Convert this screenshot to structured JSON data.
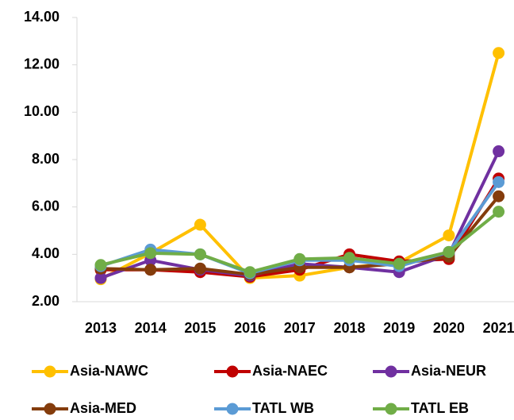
{
  "chart_data": {
    "type": "line",
    "categories": [
      "2013",
      "2014",
      "2015",
      "2016",
      "2017",
      "2018",
      "2019",
      "2020",
      "2021"
    ],
    "series": [
      {
        "name": "Asia-NAWC",
        "color": "#FFC000",
        "values": [
          2.95,
          4.05,
          5.25,
          3.0,
          3.1,
          3.45,
          3.65,
          4.8,
          12.5
        ]
      },
      {
        "name": "Asia-NAEC",
        "color": "#C00000",
        "values": [
          3.35,
          3.35,
          3.25,
          3.05,
          3.35,
          4.0,
          3.7,
          3.8,
          7.2
        ]
      },
      {
        "name": "Asia-NEUR",
        "color": "#7030A0",
        "values": [
          3.0,
          3.75,
          3.35,
          3.1,
          3.6,
          3.45,
          3.25,
          4.0,
          8.35
        ]
      },
      {
        "name": "Asia-MED",
        "color": "#843C0C",
        "values": [
          3.4,
          3.35,
          3.4,
          3.15,
          3.45,
          3.45,
          3.6,
          3.9,
          6.45
        ]
      },
      {
        "name": "TATL WB",
        "color": "#5B9BD5",
        "values": [
          3.5,
          4.2,
          4.0,
          3.2,
          3.75,
          3.75,
          3.5,
          4.1,
          7.05
        ]
      },
      {
        "name": "TATL EB",
        "color": "#70AD47",
        "values": [
          3.55,
          4.05,
          4.0,
          3.25,
          3.8,
          3.85,
          3.6,
          4.1,
          5.8
        ]
      }
    ],
    "ylim": [
      2,
      14
    ],
    "yticks": [
      {
        "value": 2,
        "label": "2.00"
      },
      {
        "value": 4,
        "label": "4.00"
      },
      {
        "value": 6,
        "label": "6.00"
      },
      {
        "value": 8,
        "label": "8.00"
      },
      {
        "value": 10,
        "label": "10.00"
      },
      {
        "value": 12,
        "label": "12.00"
      },
      {
        "value": 14,
        "label": "14.00"
      }
    ],
    "grid": false
  }
}
